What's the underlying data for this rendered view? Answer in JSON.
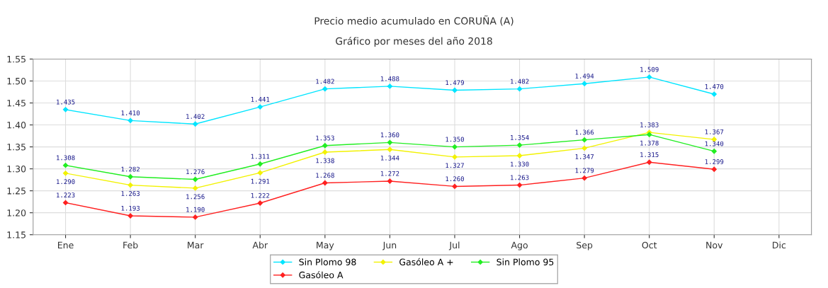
{
  "chart_data": {
    "type": "line",
    "title": "Precio medio acumulado en CORUÑA (A)",
    "subtitle": "Gráfico por meses del año 2018",
    "categories": [
      "Ene",
      "Feb",
      "Mar",
      "Abr",
      "May",
      "Jun",
      "Jul",
      "Ago",
      "Sep",
      "Oct",
      "Nov",
      "Dic"
    ],
    "series": [
      {
        "name": "Sin Plomo 98",
        "color": "#00e5ff",
        "values": [
          1.435,
          1.41,
          1.402,
          1.441,
          1.482,
          1.488,
          1.479,
          1.482,
          1.494,
          1.509,
          1.47,
          null
        ],
        "value_labels": [
          "1.435",
          "1.410",
          "1.402",
          "1.441",
          "1.482",
          "1.488",
          "1.479",
          "1.482",
          "1.494",
          "1.509",
          "1.470",
          null
        ]
      },
      {
        "name": "Gasóleo A +",
        "color": "#f2f200",
        "values": [
          1.29,
          1.263,
          1.256,
          1.291,
          1.338,
          1.344,
          1.327,
          1.33,
          1.347,
          1.383,
          1.367,
          null
        ],
        "value_labels": [
          "1.290",
          "1.263",
          "1.256",
          "1.291",
          "1.338",
          "1.344",
          "1.327",
          "1.330",
          "1.347",
          "1.383",
          "1.367",
          null
        ]
      },
      {
        "name": "Sin Plomo 95",
        "color": "#22ee22",
        "values": [
          1.308,
          1.282,
          1.276,
          1.311,
          1.353,
          1.36,
          1.35,
          1.354,
          1.366,
          1.378,
          1.34,
          null
        ],
        "value_labels": [
          "1.308",
          "1.282",
          "1.276",
          "1.311",
          "1.353",
          "1.360",
          "1.350",
          "1.354",
          "1.366",
          "1.378",
          "1.340",
          null
        ]
      },
      {
        "name": "Gasóleo A",
        "color": "#ff2020",
        "values": [
          1.223,
          1.193,
          1.19,
          1.222,
          1.268,
          1.272,
          1.26,
          1.263,
          1.279,
          1.315,
          1.299,
          null
        ],
        "value_labels": [
          "1.223",
          "1.193",
          "1.190",
          "1.222",
          "1.268",
          "1.272",
          "1.260",
          "1.263",
          "1.279",
          "1.315",
          "1.299",
          null
        ]
      }
    ],
    "ylim": [
      1.15,
      1.55
    ],
    "yticks": [
      {
        "value": 1.15,
        "label": "1.15"
      },
      {
        "value": 1.2,
        "label": "1.20"
      },
      {
        "value": 1.25,
        "label": "1.25"
      },
      {
        "value": 1.3,
        "label": "1.30"
      },
      {
        "value": 1.35,
        "label": "1.35"
      },
      {
        "value": 1.4,
        "label": "1.40"
      },
      {
        "value": 1.45,
        "label": "1.45"
      },
      {
        "value": 1.5,
        "label": "1.50"
      },
      {
        "value": 1.55,
        "label": "1.55"
      }
    ],
    "grid": true,
    "legend": "bottom",
    "marker": "diamond",
    "line_style": "solid"
  }
}
